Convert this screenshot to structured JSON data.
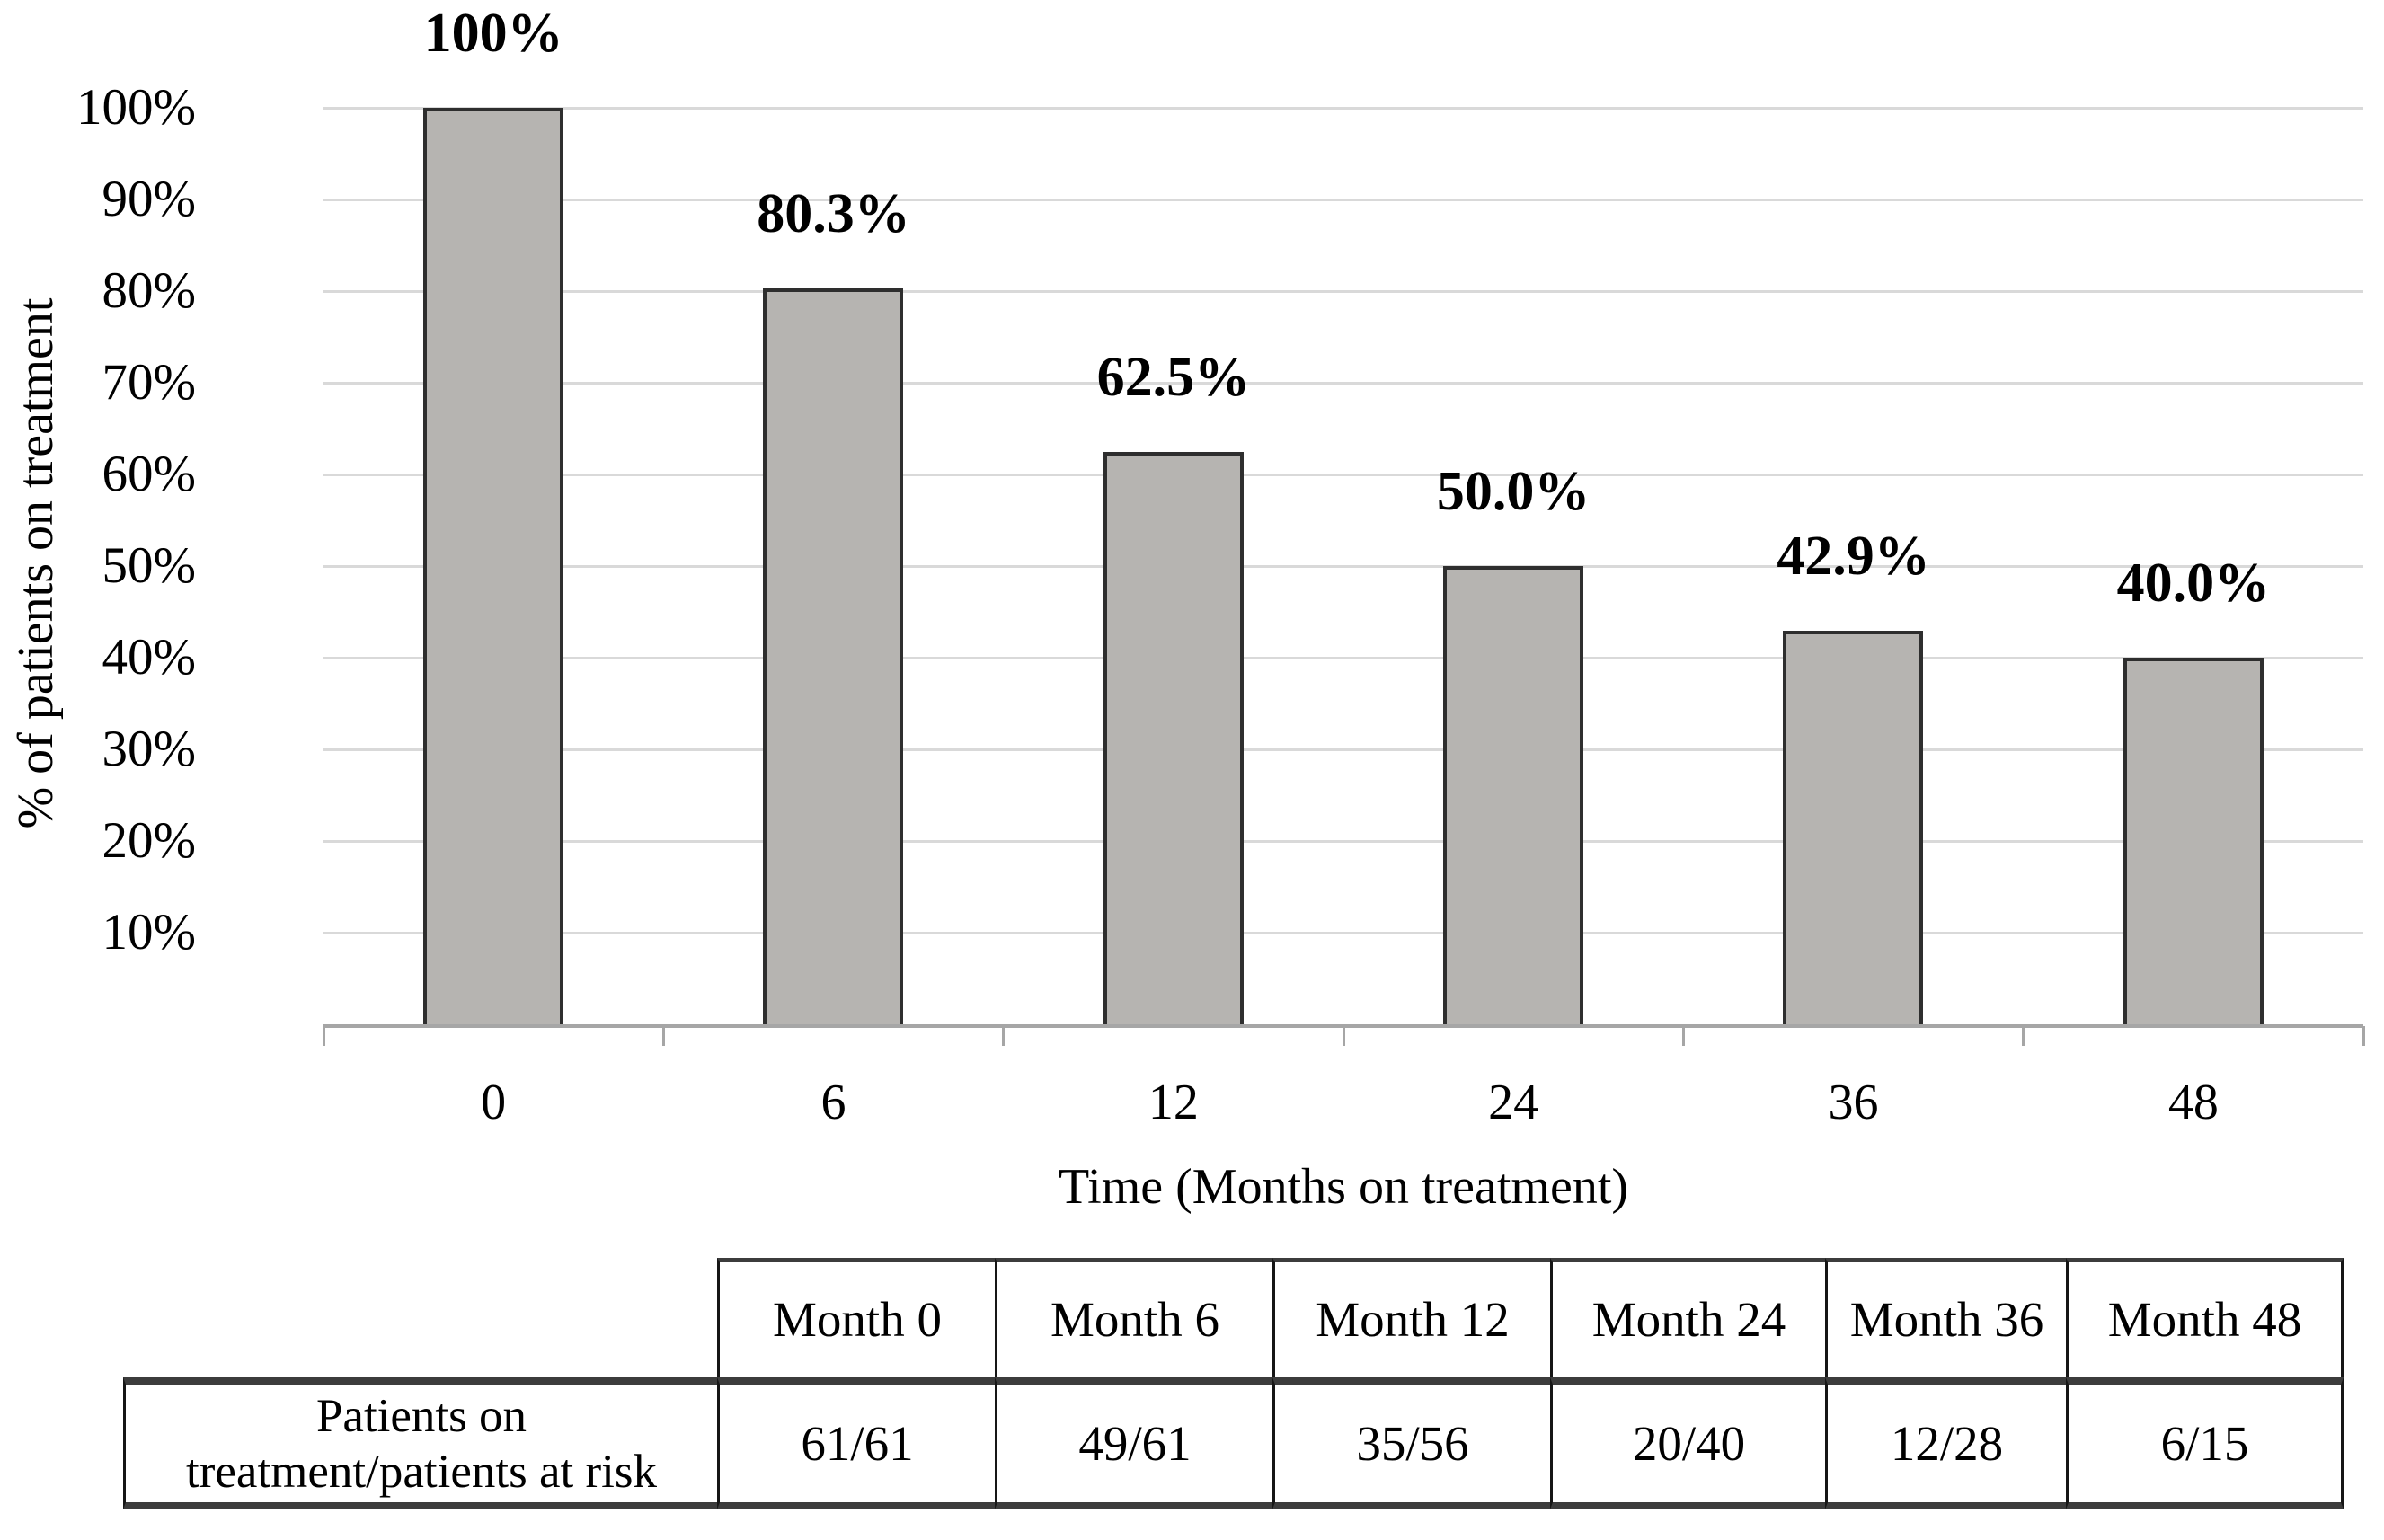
{
  "chart_data": {
    "type": "bar",
    "title": "",
    "categories": [
      "0",
      "6",
      "12",
      "24",
      "36",
      "48"
    ],
    "values": [
      100,
      80.3,
      62.5,
      50.0,
      42.9,
      40.0
    ],
    "bar_labels": [
      "100%",
      "80.3%",
      "62.5%",
      "50.0%",
      "42.9%",
      "40.0%"
    ],
    "xlabel": "Time (Months on treatment)",
    "ylabel": "% of patients on treatment",
    "ylim": [
      0,
      100
    ],
    "ytick_step": 10,
    "ytick_labels": [
      "100%",
      "90%",
      "80%",
      "70%",
      "60%",
      "50%",
      "40%",
      "30%",
      "20%",
      "10%"
    ],
    "grid": true,
    "legend": "none",
    "bar_color": "#b6b4b1",
    "bar_border_color": "#2e2e2e",
    "gridline_color": "#d9d9d9",
    "axis_line_color": "#a6a6a6",
    "label_color": "#000000"
  },
  "risk_table": {
    "columns": [
      "Month 0",
      "Month 6",
      "Month 12",
      "Month 24",
      "Month 36",
      "Month 48"
    ],
    "row_label": "Patients on treatment/patients at risk",
    "row_label_lines": [
      "Patients on",
      "treatment/patients at risk"
    ],
    "values": [
      "61/61",
      "49/61",
      "35/56",
      "20/40",
      "12/28",
      "6/15"
    ]
  }
}
